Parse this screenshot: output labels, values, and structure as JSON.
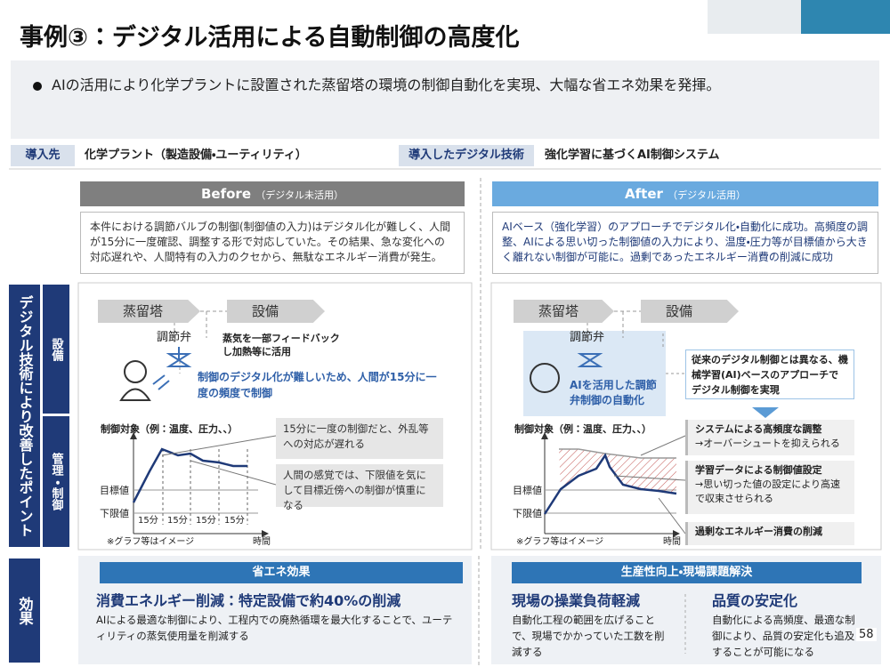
{
  "title": "事例③：デジタル活用による自動制御の高度化",
  "summary": "AIの活用により化学プラントに設置された蒸留塔の環境の制御自動化を実現、大幅な省エネ効果を発揮。",
  "overview": {
    "site_label": "導入先",
    "site": "化学プラント（製造設備・ユーティリティ）",
    "tech_label": "導入したデジタル技術",
    "tech": "強化学習に基づくAI制御システム"
  },
  "side": {
    "main": "デジタル技術により改善したポイント",
    "equipment": "設備",
    "control": "管理・制御",
    "effect": "効果"
  },
  "before": {
    "title": "Before",
    "subtitle": "（デジタル未活用）",
    "description": "本件における調節バルブの制御(制御値の入力)はデジタル化が難しく、人間が15分に一度確認、調整する形で対応していた。その結果、急な変化への対応遅れや、人間特有の入力のクセから、無駄なエネルギー消費が発生。",
    "tower": "蒸留塔",
    "equipment": "設備",
    "valve": "調節弁",
    "steam_note": "蒸気を一部フィードバックし加熱等に活用",
    "problem": "制御のデジタル化が難しいため、人間が15分に一度の頻度で制御",
    "graph": {
      "label": "制御対象（例：温度、圧力、、）",
      "target": "目標値",
      "lower": "下限値",
      "intervals": [
        "15分",
        "15分",
        "15分",
        "15分"
      ],
      "note": "※グラフ等はイメージ",
      "time": "時間"
    },
    "callouts": [
      "15分に一度の制御だと、外乱等への対応が遅れる",
      "人間の感覚では、下限値を気にして目標近傍への制御が慎重になる"
    ]
  },
  "after": {
    "title": "After",
    "subtitle": "（デジタル活用）",
    "description": "AIベース（強化学習）のアプローチでデジタル化・自動化に成功。高頻度の調整、AIによる思い切った制御値の入力により、温度・圧力等が目標値から大きく離れない制御が可能に。過剰であったエネルギー消費の削減に成功",
    "tower": "蒸留塔",
    "equipment": "設備",
    "valve": "調節弁",
    "ai_control": "AIを活用した調節弁制御の自動化",
    "difference": "従来のデジタル制御とは異なる、機械学習(AI)ベースのアプローチでデジタル制御を実現",
    "graph": {
      "label": "制御対象（例：温度、圧力、、）",
      "target": "目標値",
      "lower": "下限値",
      "note": "※グラフ等はイメージ",
      "time": "時間"
    },
    "points": [
      {
        "title": "システムによる高頻度な調整",
        "detail": "→オーバーシュートを抑えられる"
      },
      {
        "title": "学習データによる制御値設定",
        "detail": "→思い切った値の設定により高速で収束させられる"
      },
      {
        "title": "過剰なエネルギー消費の削減"
      }
    ]
  },
  "effects": {
    "energy": {
      "header": "省エネ効果",
      "heading": "消費エネルギー削減：特定設備で約40%の削減",
      "text": "AIによる最適な制御により、工程内での廃熱循環を最大化することで、ユーティリティの蒸気使用量を削減する"
    },
    "productivity": {
      "header": "生産性向上・現場課題解決",
      "items": [
        {
          "heading": "現場の操業負荷軽減",
          "text": "自動化工程の範囲を広げることで、現場でかかっていた工数を削減する"
        },
        {
          "heading": "品質の安定化",
          "text": "自動化による高頻度、最適な制御により、品質の安定化も追及することが可能になる"
        }
      ]
    }
  },
  "page_number": "58"
}
